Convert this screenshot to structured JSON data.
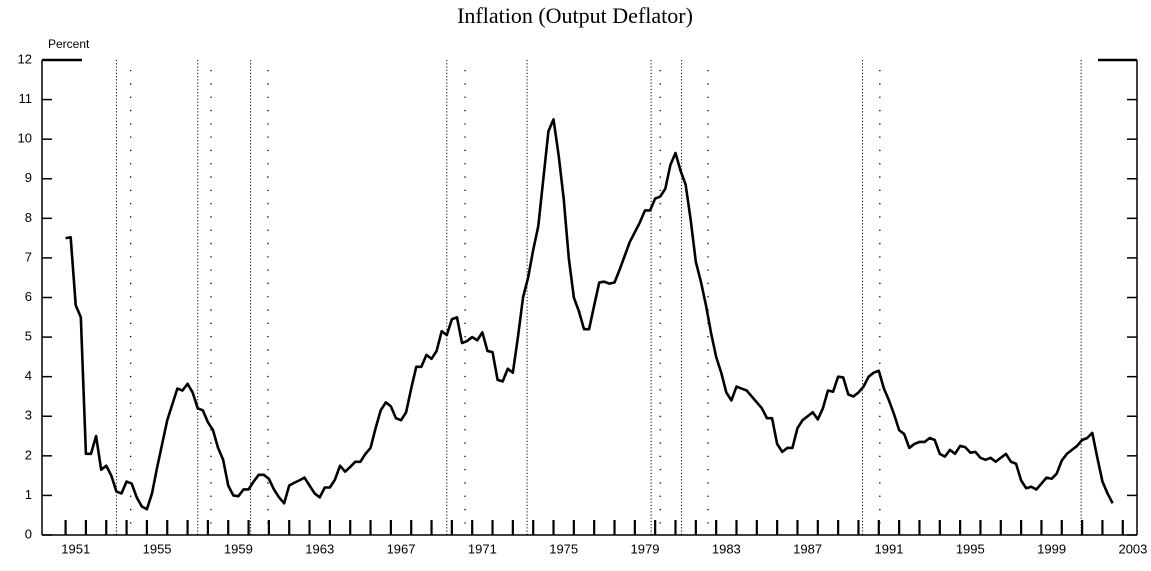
{
  "chart_data": {
    "type": "line",
    "title": "Inflation (Output Deflator)",
    "y_label": "Percent",
    "color": "#000000",
    "xlim": [
      1949.84,
      2003.7
    ],
    "ylim": [
      0,
      12
    ],
    "yticks": [
      0,
      1,
      2,
      3,
      4,
      5,
      6,
      7,
      8,
      9,
      10,
      11,
      12
    ],
    "xticks": [
      {
        "value": 1951.5,
        "label": "1951"
      },
      {
        "value": 1955.5,
        "label": "1955"
      },
      {
        "value": 1959.5,
        "label": "1959"
      },
      {
        "value": 1963.5,
        "label": "1963"
      },
      {
        "value": 1967.5,
        "label": "1967"
      },
      {
        "value": 1971.5,
        "label": "1971"
      },
      {
        "value": 1975.5,
        "label": "1975"
      },
      {
        "value": 1979.5,
        "label": "1979"
      },
      {
        "value": 1983.5,
        "label": "1983"
      },
      {
        "value": 1987.5,
        "label": "1987"
      },
      {
        "value": 1991.5,
        "label": "1991"
      },
      {
        "value": 1995.5,
        "label": "1995"
      },
      {
        "value": 1999.5,
        "label": "1999"
      },
      {
        "value": 2003.5,
        "label": "2003"
      }
    ],
    "xminorticks": [
      1951,
      1952,
      1953,
      1954,
      1955,
      1956,
      1957,
      1958,
      1959,
      1960,
      1961,
      1962,
      1963,
      1964,
      1965,
      1966,
      1967,
      1968,
      1969,
      1970,
      1971,
      1972,
      1973,
      1974,
      1975,
      1976,
      1977,
      1978,
      1979,
      1980,
      1981,
      1982,
      1983,
      1984,
      1985,
      1986,
      1987,
      1988,
      1989,
      1990,
      1991,
      1992,
      1993,
      1994,
      1995,
      1996,
      1997,
      1998,
      1999,
      2000,
      2001,
      2002,
      2003
    ],
    "recession_peaks": [
      1953.5,
      1957.5,
      1960.1,
      1969.75,
      1973.7,
      1979.8,
      1981.3,
      1990.2,
      2000.95
    ],
    "recession_troughs": [
      1954.2,
      1958.15,
      1960.95,
      1970.65,
      1980.25,
      1982.6,
      1991.05
    ],
    "x": [
      1951,
      1951.25,
      1951.5,
      1951.75,
      1952,
      1952.25,
      1952.5,
      1952.75,
      1953,
      1953.25,
      1953.5,
      1953.75,
      1954,
      1954.25,
      1954.5,
      1954.75,
      1955,
      1955.25,
      1955.5,
      1955.75,
      1956,
      1956.25,
      1956.5,
      1956.75,
      1957,
      1957.25,
      1957.5,
      1957.75,
      1958,
      1958.25,
      1958.5,
      1958.75,
      1959,
      1959.25,
      1959.5,
      1959.75,
      1960,
      1960.25,
      1960.5,
      1960.75,
      1961,
      1961.25,
      1961.5,
      1961.75,
      1962,
      1962.25,
      1962.5,
      1962.75,
      1963,
      1963.25,
      1963.5,
      1963.75,
      1964,
      1964.25,
      1964.5,
      1964.75,
      1965,
      1965.25,
      1965.5,
      1965.75,
      1966,
      1966.25,
      1966.5,
      1966.75,
      1967,
      1967.25,
      1967.5,
      1967.75,
      1968,
      1968.25,
      1968.5,
      1968.75,
      1969,
      1969.25,
      1969.5,
      1969.75,
      1970,
      1970.25,
      1970.5,
      1970.75,
      1971,
      1971.25,
      1971.5,
      1971.75,
      1972,
      1972.25,
      1972.5,
      1972.75,
      1973,
      1973.25,
      1973.5,
      1973.75,
      1974,
      1974.25,
      1974.5,
      1974.75,
      1975,
      1975.25,
      1975.5,
      1975.75,
      1976,
      1976.25,
      1976.5,
      1976.75,
      1977,
      1977.25,
      1977.5,
      1977.75,
      1978,
      1978.25,
      1978.5,
      1978.75,
      1979,
      1979.25,
      1979.5,
      1979.75,
      1980,
      1980.25,
      1980.5,
      1980.75,
      1981,
      1981.25,
      1981.5,
      1981.75,
      1982,
      1982.25,
      1982.5,
      1982.75,
      1983,
      1983.25,
      1983.5,
      1983.75,
      1984,
      1984.25,
      1984.5,
      1984.75,
      1985,
      1985.25,
      1985.5,
      1985.75,
      1986,
      1986.25,
      1986.5,
      1986.75,
      1987,
      1987.25,
      1987.5,
      1987.75,
      1988,
      1988.25,
      1988.5,
      1988.75,
      1989,
      1989.25,
      1989.5,
      1989.75,
      1990,
      1990.25,
      1990.5,
      1990.75,
      1991,
      1991.25,
      1991.5,
      1991.75,
      1992,
      1992.25,
      1992.5,
      1992.75,
      1993,
      1993.25,
      1993.5,
      1993.75,
      1994,
      1994.25,
      1994.5,
      1994.75,
      1995,
      1995.25,
      1995.5,
      1995.75,
      1996,
      1996.25,
      1996.5,
      1996.75,
      1997,
      1997.25,
      1997.5,
      1997.75,
      1998,
      1998.25,
      1998.5,
      1998.75,
      1999,
      1999.25,
      1999.5,
      1999.75,
      2000,
      2000.25,
      2000.5,
      2000.75,
      2001,
      2001.25,
      2001.5,
      2001.75,
      2002,
      2002.25,
      2002.5
    ],
    "values": [
      7.5,
      7.52,
      5.8,
      5.5,
      2.05,
      2.05,
      2.5,
      1.65,
      1.75,
      1.5,
      1.1,
      1.05,
      1.35,
      1.3,
      0.95,
      0.72,
      0.65,
      1.05,
      1.7,
      2.3,
      2.9,
      3.3,
      3.7,
      3.65,
      3.82,
      3.6,
      3.2,
      3.15,
      2.85,
      2.65,
      2.2,
      1.9,
      1.25,
      1.0,
      0.98,
      1.15,
      1.15,
      1.35,
      1.52,
      1.52,
      1.42,
      1.15,
      0.95,
      0.8,
      1.25,
      1.32,
      1.38,
      1.45,
      1.25,
      1.05,
      0.95,
      1.2,
      1.2,
      1.4,
      1.75,
      1.6,
      1.72,
      1.85,
      1.85,
      2.05,
      2.2,
      2.7,
      3.15,
      3.35,
      3.25,
      2.95,
      2.9,
      3.1,
      3.7,
      4.25,
      4.25,
      4.55,
      4.45,
      4.65,
      5.15,
      5.05,
      5.45,
      5.5,
      4.85,
      4.9,
      5.0,
      4.92,
      5.12,
      4.65,
      4.62,
      3.92,
      3.88,
      4.2,
      4.1,
      5.0,
      6.0,
      6.5,
      7.2,
      7.8,
      9.0,
      10.2,
      10.5,
      9.6,
      8.5,
      7.0,
      6.0,
      5.65,
      5.2,
      5.2,
      5.8,
      6.38,
      6.4,
      6.35,
      6.38,
      6.7,
      7.05,
      7.4,
      7.65,
      7.9,
      8.2,
      8.2,
      8.5,
      8.55,
      8.75,
      9.35,
      9.65,
      9.2,
      8.85,
      7.95,
      6.9,
      6.4,
      5.8,
      5.1,
      4.5,
      4.1,
      3.6,
      3.4,
      3.75,
      3.7,
      3.65,
      3.5,
      3.35,
      3.2,
      2.95,
      2.95,
      2.3,
      2.1,
      2.2,
      2.2,
      2.7,
      2.9,
      3.0,
      3.1,
      2.92,
      3.2,
      3.65,
      3.62,
      4.0,
      3.98,
      3.55,
      3.5,
      3.6,
      3.75,
      4.0,
      4.1,
      4.15,
      3.7,
      3.4,
      3.05,
      2.65,
      2.55,
      2.2,
      2.3,
      2.35,
      2.35,
      2.45,
      2.4,
      2.05,
      1.98,
      2.15,
      2.05,
      2.25,
      2.22,
      2.08,
      2.1,
      1.95,
      1.9,
      1.95,
      1.85,
      1.95,
      2.05,
      1.85,
      1.8,
      1.38,
      1.18,
      1.22,
      1.15,
      1.3,
      1.45,
      1.42,
      1.55,
      1.88,
      2.05,
      2.15,
      2.25,
      2.4,
      2.45,
      2.58,
      1.95,
      1.35,
      1.05,
      0.8
    ]
  }
}
